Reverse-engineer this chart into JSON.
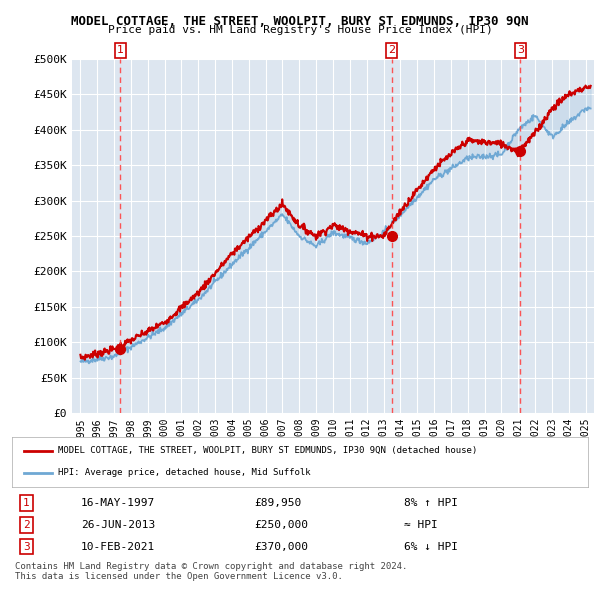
{
  "title": "MODEL COTTAGE, THE STREET, WOOLPIT, BURY ST EDMUNDS, IP30 9QN",
  "subtitle": "Price paid vs. HM Land Registry's House Price Index (HPI)",
  "legend_property": "MODEL COTTAGE, THE STREET, WOOLPIT, BURY ST EDMUNDS, IP30 9QN (detached house)",
  "legend_hpi": "HPI: Average price, detached house, Mid Suffolk",
  "footer1": "Contains HM Land Registry data © Crown copyright and database right 2024.",
  "footer2": "This data is licensed under the Open Government Licence v3.0.",
  "sales": [
    {
      "num": 1,
      "date": "16-MAY-1997",
      "price": 89950,
      "x": 1997.37,
      "hpi_rel": "8% ↑ HPI"
    },
    {
      "num": 2,
      "date": "26-JUN-2013",
      "price": 250000,
      "x": 2013.48,
      "hpi_rel": "≈ HPI"
    },
    {
      "num": 3,
      "date": "10-FEB-2021",
      "price": 370000,
      "x": 2021.12,
      "hpi_rel": "6% ↓ HPI"
    }
  ],
  "ylim": [
    0,
    500000
  ],
  "yticks": [
    0,
    50000,
    100000,
    150000,
    200000,
    250000,
    300000,
    350000,
    400000,
    450000,
    500000
  ],
  "ytick_labels": [
    "£0",
    "£50K",
    "£100K",
    "£150K",
    "£200K",
    "£250K",
    "£300K",
    "£350K",
    "£400K",
    "£450K",
    "£500K"
  ],
  "xlim": [
    1994.5,
    2025.5
  ],
  "xticks": [
    1995,
    1996,
    1997,
    1998,
    1999,
    2000,
    2001,
    2002,
    2003,
    2004,
    2005,
    2006,
    2007,
    2008,
    2009,
    2010,
    2011,
    2012,
    2013,
    2014,
    2015,
    2016,
    2017,
    2018,
    2019,
    2020,
    2021,
    2022,
    2023,
    2024,
    2025
  ],
  "bg_color": "#e8eef7",
  "plot_bg": "#dde6f0",
  "grid_color": "#ffffff",
  "hpi_color": "#6fa8d4",
  "price_color": "#cc0000",
  "sale_dot_color": "#cc0000",
  "dashed_color": "#ff4444"
}
